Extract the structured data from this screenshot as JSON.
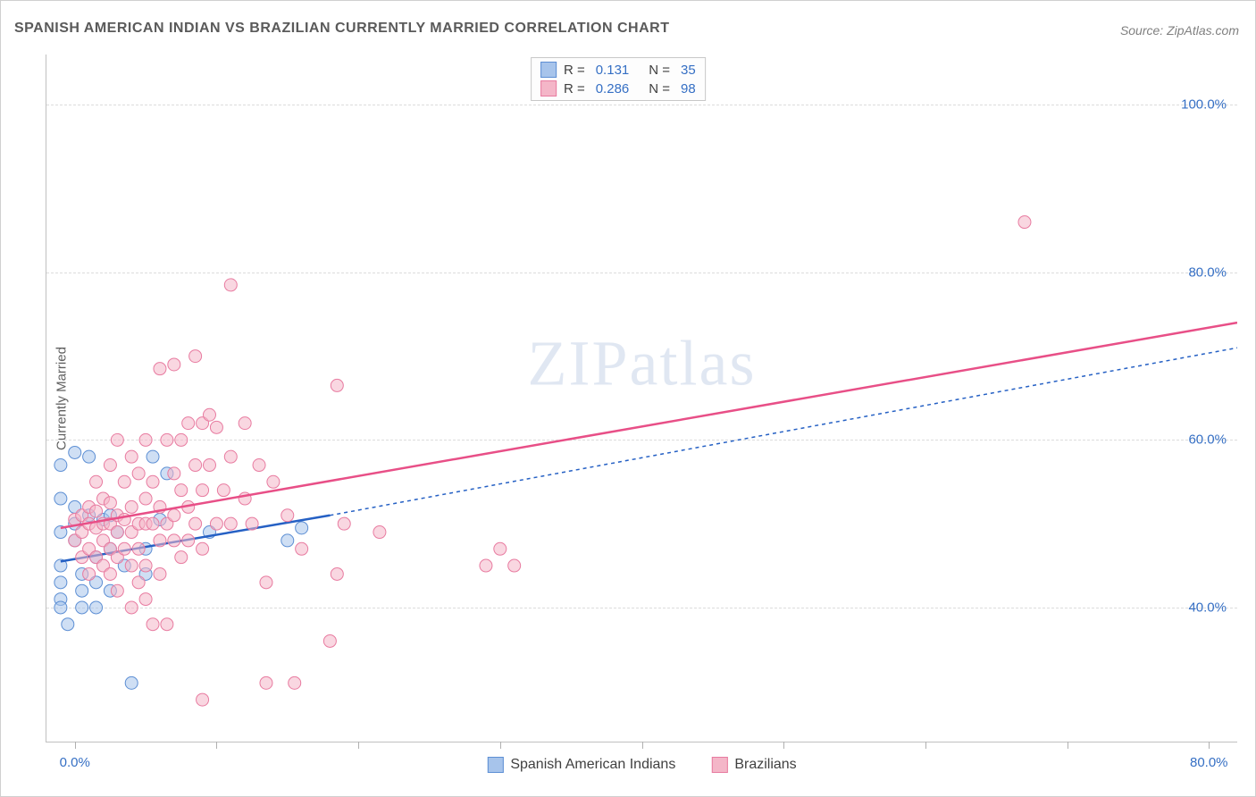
{
  "title": "SPANISH AMERICAN INDIAN VS BRAZILIAN CURRENTLY MARRIED CORRELATION CHART",
  "source": "Source: ZipAtlas.com",
  "y_axis_label": "Currently Married",
  "watermark": "ZIPatlas",
  "chart": {
    "type": "scatter-with-regression",
    "x_domain": [
      -2,
      82
    ],
    "y_domain": [
      24,
      106
    ],
    "y_ticks": [
      40,
      60,
      80,
      100
    ],
    "y_tick_labels": [
      "40.0%",
      "60.0%",
      "80.0%",
      "100.0%"
    ],
    "x_ticks": [
      0,
      10,
      20,
      30,
      40,
      50,
      60,
      70,
      80
    ],
    "x_tick_labels": {
      "0": "0.0%",
      "80": "80.0%"
    },
    "grid_color": "#dcdcdc",
    "background_color": "#ffffff",
    "series": [
      {
        "name": "Spanish American Indians",
        "marker_fill": "#a7c4eb",
        "marker_stroke": "#5d8fd4",
        "marker_opacity": 0.55,
        "marker_radius": 7,
        "line_color": "#2560c4",
        "line_width": 2.5,
        "line_dash_extend": "4 4",
        "R": "0.131",
        "N": "35",
        "regression": {
          "x1": -1,
          "y1": 45.5,
          "x2_solid": 18,
          "y2_solid": 51,
          "x2": 82,
          "y2": 71
        },
        "points": [
          [
            -1,
            57
          ],
          [
            -1,
            53
          ],
          [
            -1,
            49
          ],
          [
            -1,
            45
          ],
          [
            -1,
            43
          ],
          [
            -1,
            41
          ],
          [
            -1,
            40
          ],
          [
            -0.5,
            38
          ],
          [
            0,
            58.5
          ],
          [
            0,
            52
          ],
          [
            0,
            50
          ],
          [
            0,
            48
          ],
          [
            0.5,
            44
          ],
          [
            0.5,
            42
          ],
          [
            0.5,
            40
          ],
          [
            1,
            58
          ],
          [
            1,
            51
          ],
          [
            1.5,
            46
          ],
          [
            1.5,
            43
          ],
          [
            1.5,
            40
          ],
          [
            2,
            50.5
          ],
          [
            2.5,
            51
          ],
          [
            2.5,
            47
          ],
          [
            2.5,
            42
          ],
          [
            3,
            49
          ],
          [
            3.5,
            45
          ],
          [
            4,
            31
          ],
          [
            5,
            47
          ],
          [
            5,
            44
          ],
          [
            5.5,
            58
          ],
          [
            6,
            50.5
          ],
          [
            6.5,
            56
          ],
          [
            9.5,
            49
          ],
          [
            15,
            48
          ],
          [
            16,
            49.5
          ]
        ]
      },
      {
        "name": "Brazilians",
        "marker_fill": "#f4b6c8",
        "marker_stroke": "#e87ba0",
        "marker_opacity": 0.55,
        "marker_radius": 7,
        "line_color": "#e84f87",
        "line_width": 2.5,
        "R": "0.286",
        "N": "98",
        "regression": {
          "x1": -1,
          "y1": 49.5,
          "x2": 82,
          "y2": 74
        },
        "points": [
          [
            0,
            50.5
          ],
          [
            0,
            48
          ],
          [
            0.5,
            51
          ],
          [
            0.5,
            49
          ],
          [
            0.5,
            46
          ],
          [
            1,
            52
          ],
          [
            1,
            50
          ],
          [
            1,
            47
          ],
          [
            1,
            44
          ],
          [
            1.5,
            55
          ],
          [
            1.5,
            51.5
          ],
          [
            1.5,
            49.5
          ],
          [
            1.5,
            46
          ],
          [
            2,
            53
          ],
          [
            2,
            50
          ],
          [
            2,
            48
          ],
          [
            2,
            45
          ],
          [
            2.5,
            57
          ],
          [
            2.5,
            52.5
          ],
          [
            2.5,
            50
          ],
          [
            2.5,
            47
          ],
          [
            2.5,
            44
          ],
          [
            3,
            60
          ],
          [
            3,
            51
          ],
          [
            3,
            49
          ],
          [
            3,
            46
          ],
          [
            3,
            42
          ],
          [
            3.5,
            55
          ],
          [
            3.5,
            50.5
          ],
          [
            3.5,
            47
          ],
          [
            4,
            58
          ],
          [
            4,
            52
          ],
          [
            4,
            49
          ],
          [
            4,
            45
          ],
          [
            4,
            40
          ],
          [
            4.5,
            56
          ],
          [
            4.5,
            50
          ],
          [
            4.5,
            47
          ],
          [
            4.5,
            43
          ],
          [
            5,
            60
          ],
          [
            5,
            53
          ],
          [
            5,
            50
          ],
          [
            5,
            45
          ],
          [
            5,
            41
          ],
          [
            5.5,
            55
          ],
          [
            5.5,
            50
          ],
          [
            5.5,
            38
          ],
          [
            6,
            68.5
          ],
          [
            6,
            52
          ],
          [
            6,
            48
          ],
          [
            6,
            44
          ],
          [
            6.5,
            60
          ],
          [
            6.5,
            50
          ],
          [
            6.5,
            38
          ],
          [
            7,
            69
          ],
          [
            7,
            56
          ],
          [
            7,
            51
          ],
          [
            7,
            48
          ],
          [
            7.5,
            60
          ],
          [
            7.5,
            54
          ],
          [
            7.5,
            46
          ],
          [
            8,
            62
          ],
          [
            8,
            52
          ],
          [
            8,
            48
          ],
          [
            8.5,
            70
          ],
          [
            8.5,
            57
          ],
          [
            8.5,
            50
          ],
          [
            9,
            62
          ],
          [
            9,
            54
          ],
          [
            9,
            47
          ],
          [
            9,
            29
          ],
          [
            9.5,
            63
          ],
          [
            9.5,
            57
          ],
          [
            10,
            61.5
          ],
          [
            10,
            50
          ],
          [
            10.5,
            54
          ],
          [
            11,
            58
          ],
          [
            11,
            50
          ],
          [
            11,
            78.5
          ],
          [
            12,
            62
          ],
          [
            12,
            53
          ],
          [
            12.5,
            50
          ],
          [
            13,
            57
          ],
          [
            13.5,
            43
          ],
          [
            13.5,
            31
          ],
          [
            14,
            55
          ],
          [
            15,
            51
          ],
          [
            15.5,
            31
          ],
          [
            16,
            47
          ],
          [
            18,
            36
          ],
          [
            18.5,
            44
          ],
          [
            18.5,
            66.5
          ],
          [
            19,
            50
          ],
          [
            21.5,
            49
          ],
          [
            29,
            45
          ],
          [
            30,
            47
          ],
          [
            31,
            45
          ],
          [
            67,
            86
          ]
        ]
      }
    ]
  },
  "legend_top": [
    {
      "swatch_fill": "#a7c4eb",
      "swatch_stroke": "#5d8fd4",
      "R_label": "R =",
      "R": "0.131",
      "N_label": "N =",
      "N": "35"
    },
    {
      "swatch_fill": "#f4b6c8",
      "swatch_stroke": "#e87ba0",
      "R_label": "R =",
      "R": "0.286",
      "N_label": "N =",
      "N": "98"
    }
  ],
  "legend_bottom": [
    {
      "swatch_fill": "#a7c4eb",
      "swatch_stroke": "#5d8fd4",
      "label": "Spanish American Indians"
    },
    {
      "swatch_fill": "#f4b6c8",
      "swatch_stroke": "#e87ba0",
      "label": "Brazilians"
    }
  ]
}
